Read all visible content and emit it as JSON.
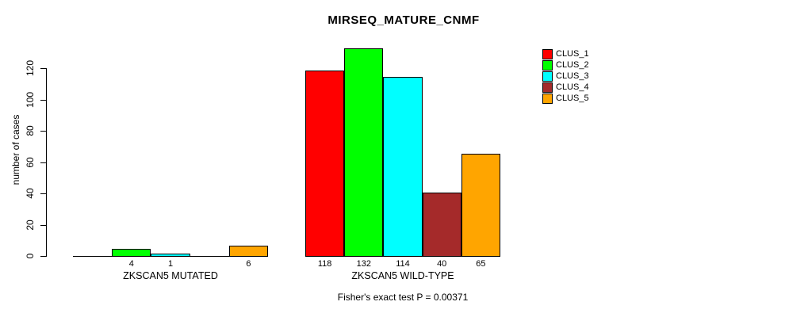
{
  "title": "MIRSEQ_MATURE_CNMF",
  "chart_data": {
    "type": "bar",
    "title": "MIRSEQ_MATURE_CNMF",
    "xlabel": "",
    "ylabel": "number of cases",
    "categories": [
      "ZKSCAN5 MUTATED",
      "ZKSCAN5 WILD-TYPE"
    ],
    "series": [
      {
        "name": "CLUS_1",
        "color": "#FF0000",
        "values": [
          0,
          118
        ]
      },
      {
        "name": "CLUS_2",
        "color": "#00FF00",
        "values": [
          4,
          132
        ]
      },
      {
        "name": "CLUS_3",
        "color": "#00FFFF",
        "values": [
          1,
          114
        ]
      },
      {
        "name": "CLUS_4",
        "color": "#A52A2A",
        "values": [
          0,
          40
        ]
      },
      {
        "name": "CLUS_5",
        "color": "#FFA500",
        "values": [
          6,
          65
        ]
      }
    ],
    "visible_bar_value_labels": [
      "4",
      "1",
      "6",
      "118",
      "132",
      "114",
      "40",
      "65"
    ],
    "zero_bars_unlabeled": true,
    "yticks": [
      0,
      20,
      40,
      60,
      80,
      100,
      120
    ],
    "ylim": [
      0,
      132
    ],
    "grid": false,
    "legend_position": "top-right",
    "legend_entries": [
      "CLUS_1",
      "CLUS_2",
      "CLUS_3",
      "CLUS_4",
      "CLUS_5"
    ],
    "annotation": "Fisher's exact test P = 0.00371"
  }
}
